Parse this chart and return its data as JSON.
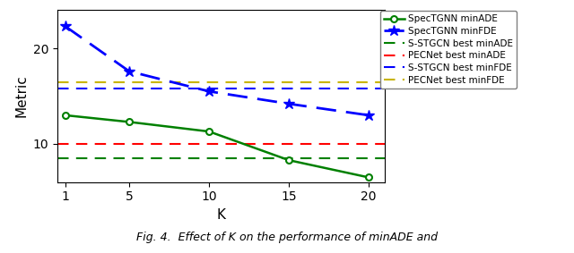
{
  "K_values": [
    1,
    5,
    10,
    15,
    20
  ],
  "specTGNN_minADE": [
    13.0,
    12.3,
    11.3,
    8.3,
    6.5
  ],
  "specTGNN_minFDE": [
    22.3,
    17.6,
    15.5,
    14.2,
    13.0
  ],
  "sstgcn_best_minADE": 8.5,
  "pecnet_best_minADE": 10.0,
  "sstgcn_best_minFDE": 15.8,
  "pecnet_best_minFDE": 16.5,
  "xlabel": "K",
  "ylabel": "Metric",
  "ylim": [
    6,
    24
  ],
  "xlim": [
    0.5,
    21
  ],
  "xticks": [
    1,
    5,
    10,
    15,
    20
  ],
  "yticks": [
    10,
    20
  ],
  "color_green": "#008000",
  "color_blue": "#0000FF",
  "color_red": "#FF0000",
  "color_yellow": "#C8B400",
  "figsize": [
    6.4,
    2.83
  ],
  "dpi": 100,
  "caption": "Fig. 4.  Effect of K on the performance of minADE and"
}
